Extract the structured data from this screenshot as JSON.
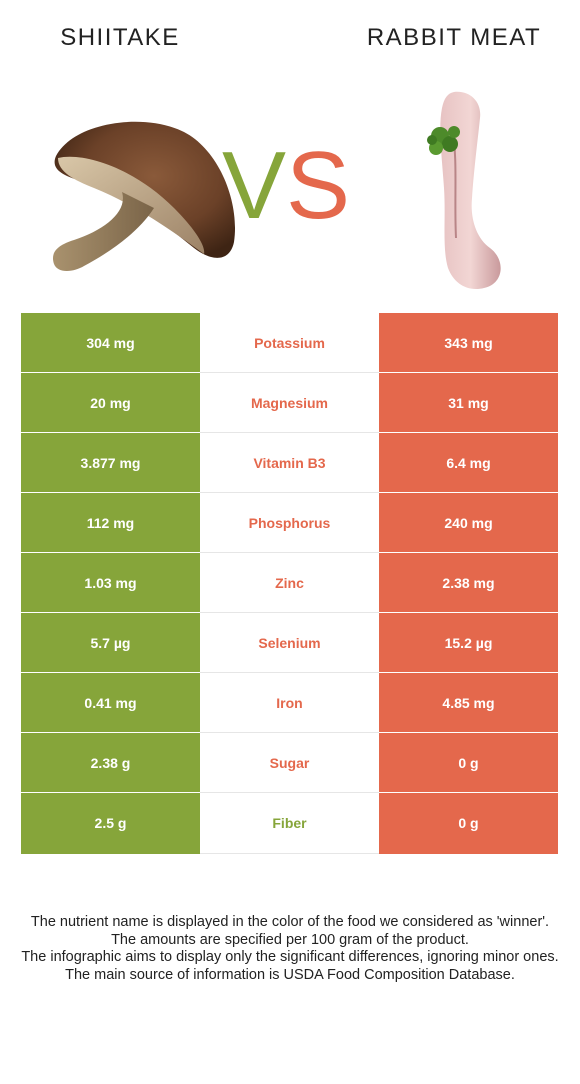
{
  "header": {
    "left_title": "SHIITAKE",
    "right_title": "RABBIT MEAT",
    "vs_v": "V",
    "vs_s": "S"
  },
  "colors": {
    "left_food": "#86a53a",
    "right_food": "#e4684c"
  },
  "rows": [
    {
      "left": "304 mg",
      "nutrient": "Potassium",
      "right": "343 mg",
      "winner": "right"
    },
    {
      "left": "20 mg",
      "nutrient": "Magnesium",
      "right": "31 mg",
      "winner": "right"
    },
    {
      "left": "3.877 mg",
      "nutrient": "Vitamin B3",
      "right": "6.4 mg",
      "winner": "right"
    },
    {
      "left": "112 mg",
      "nutrient": "Phosphorus",
      "right": "240 mg",
      "winner": "right"
    },
    {
      "left": "1.03 mg",
      "nutrient": "Zinc",
      "right": "2.38 mg",
      "winner": "right"
    },
    {
      "left": "5.7 µg",
      "nutrient": "Selenium",
      "right": "15.2 µg",
      "winner": "right"
    },
    {
      "left": "0.41 mg",
      "nutrient": "Iron",
      "right": "4.85 mg",
      "winner": "right"
    },
    {
      "left": "2.38 g",
      "nutrient": "Sugar",
      "right": "0 g",
      "winner": "right"
    },
    {
      "left": "2.5 g",
      "nutrient": "Fiber",
      "right": "0 g",
      "winner": "left"
    }
  ],
  "footer": {
    "line1": "The nutrient name is displayed in the color of the food we considered as 'winner'.",
    "line2": "The amounts are specified per 100 gram of the product.",
    "line3": "The infographic aims to display only the significant differences, ignoring minor ones.",
    "line4": "The main source of information is USDA Food Composition Database."
  }
}
